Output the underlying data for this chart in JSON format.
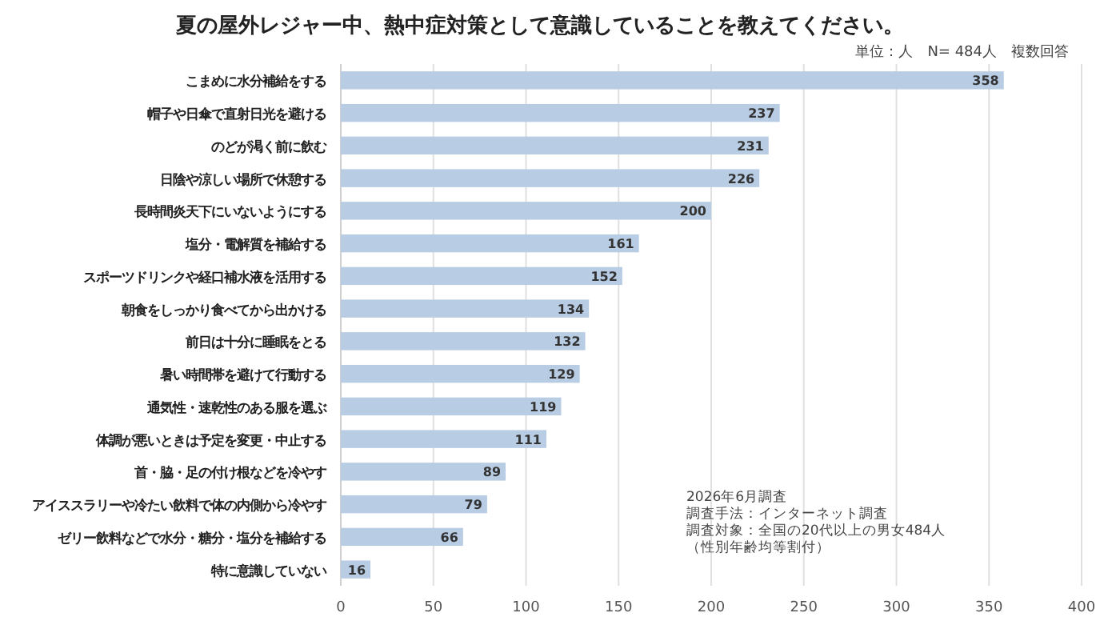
{
  "chart_data": {
    "type": "bar",
    "orientation": "horizontal",
    "title": "夏の屋外レジャー中、熱中症対策として意識していることを教えてください。",
    "subtitle": "単位：人　N= 484人　複数回答",
    "categories": [
      "こまめに水分補給をする",
      "帽子や日傘で直射日光を避ける",
      "のどが渇く前に飲む",
      "日陰や涼しい場所で休憩する",
      "長時間炎天下にいないようにする",
      "塩分・電解質を補給する",
      "スポーツドリンクや経口補水液を活用する",
      "朝食をしっかり食べてから出かける",
      "前日は十分に睡眠をとる",
      "暑い時間帯を避けて行動する",
      "通気性・速乾性のある服を選ぶ",
      "体調が悪いときは予定を変更・中止する",
      "首・脇・足の付け根などを冷やす",
      "アイススラリーや冷たい飲料で体の内側から冷やす",
      "ゼリー飲料などで水分・糖分・塩分を補給する",
      "特に意識していない"
    ],
    "values": [
      358,
      237,
      231,
      226,
      200,
      161,
      152,
      134,
      132,
      129,
      119,
      111,
      89,
      79,
      66,
      16
    ],
    "color": "#b8cce4",
    "data_labels": true,
    "xlim": [
      0,
      400
    ],
    "xticks": [
      0,
      50,
      100,
      150,
      200,
      250,
      300,
      350,
      400
    ],
    "grid": "x",
    "annotations": [
      "2026年6月調査",
      "調査手法：インターネット調査",
      "調査対象：全国の20代以上の男女484人",
      "（性別年齢均等割付）"
    ]
  }
}
